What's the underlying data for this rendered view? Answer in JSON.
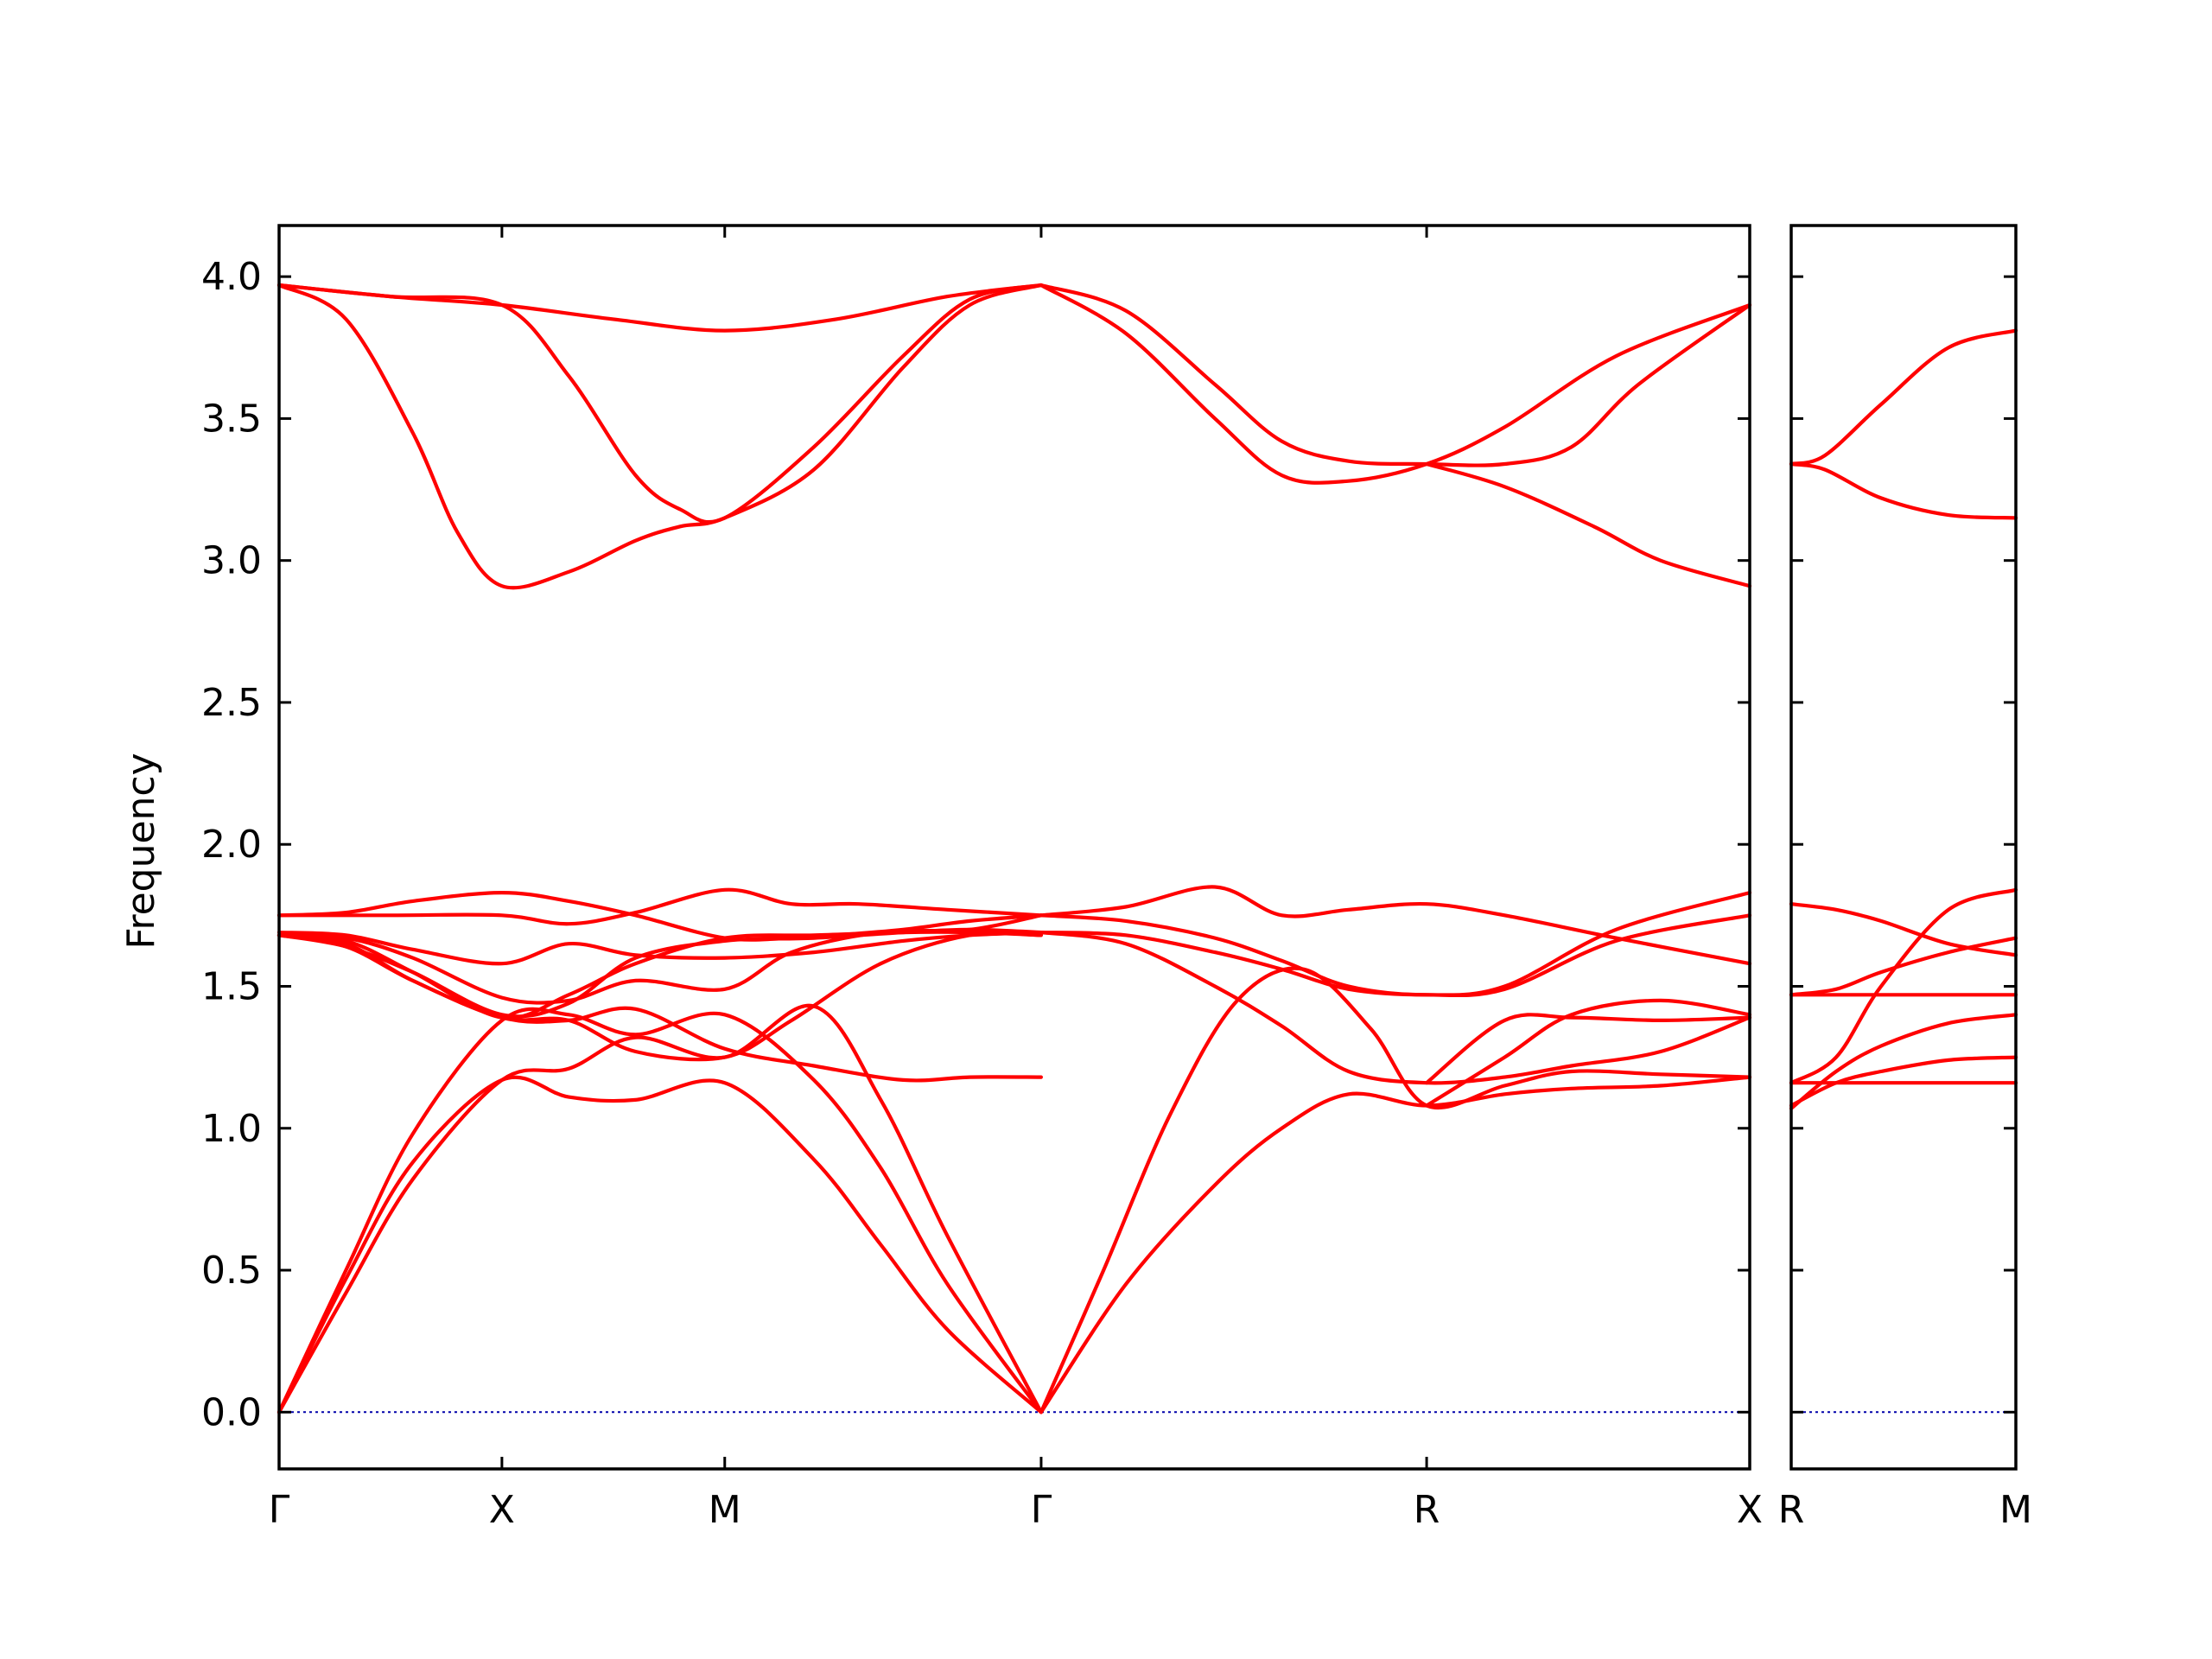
{
  "chart_data": {
    "type": "line",
    "title": "",
    "xlabel": "",
    "ylabel": "Frequency",
    "ylim": [
      -0.2,
      4.18
    ],
    "yticks": [
      "0.0",
      "0.5",
      "1.0",
      "1.5",
      "2.0",
      "2.5",
      "3.0",
      "3.5",
      "4.0"
    ],
    "ytick_values": [
      0.0,
      0.5,
      1.0,
      1.5,
      2.0,
      2.5,
      3.0,
      3.5,
      4.0
    ],
    "line_color": "#ff0000",
    "zero_line_color": "#0000aa",
    "grid": false,
    "panels": [
      {
        "xlim": [
          0,
          6.6
        ],
        "ticks": [
          {
            "pos": 0,
            "label": "Γ"
          },
          {
            "pos": 1.0,
            "label": "X"
          },
          {
            "pos": 2.0,
            "label": "M"
          },
          {
            "pos": 3.42,
            "label": "Γ"
          },
          {
            "pos": 5.15,
            "label": "R"
          },
          {
            "pos": 6.6,
            "label": "X"
          }
        ],
        "series": [
          {
            "x": [
              0,
              0.5,
              1.0,
              1.5,
              2.0,
              2.5,
              3.0,
              3.42
            ],
            "y": [
              3.97,
              3.93,
              3.9,
              3.85,
              3.81,
              3.85,
              3.93,
              3.97
            ]
          },
          {
            "x": [
              0,
              0.3,
              0.6,
              0.8,
              1.0,
              1.3,
              1.6,
              1.8,
              2.0,
              2.4,
              2.8,
              3.1,
              3.42
            ],
            "y": [
              3.97,
              3.85,
              3.45,
              3.1,
              2.91,
              2.96,
              3.07,
              3.12,
              3.15,
              3.32,
              3.68,
              3.9,
              3.97
            ]
          },
          {
            "x": [
              0,
              0.5,
              1.0,
              1.3,
              1.6,
              1.8,
              2.0,
              2.4,
              2.8,
              3.1,
              3.42
            ],
            "y": [
              3.97,
              3.93,
              3.9,
              3.65,
              3.3,
              3.18,
              3.15,
              3.4,
              3.72,
              3.92,
              3.97
            ]
          },
          {
            "x": [
              3.42,
              3.8,
              4.2,
              4.5,
              4.8,
              5.15,
              5.5,
              5.8,
              6.1,
              6.6
            ],
            "y": [
              3.97,
              3.88,
              3.62,
              3.42,
              3.35,
              3.34,
              3.34,
              3.4,
              3.62,
              3.9
            ]
          },
          {
            "x": [
              3.42,
              3.8,
              4.2,
              4.5,
              4.8,
              5.15,
              5.5,
              6.0,
              6.6
            ],
            "y": [
              3.97,
              3.8,
              3.5,
              3.3,
              3.28,
              3.34,
              3.47,
              3.72,
              3.9
            ]
          },
          {
            "x": [
              5.15,
              5.5,
              5.9,
              6.2,
              6.6
            ],
            "y": [
              3.34,
              3.26,
              3.12,
              3.0,
              2.91
            ]
          },
          {
            "x": [
              0,
              0.3,
              0.6,
              1.0,
              1.3,
              1.6,
              2.0,
              2.3,
              2.5,
              2.8,
              3.1,
              3.42
            ],
            "y": [
              1.75,
              1.76,
              1.8,
              1.83,
              1.8,
              1.75,
              1.67,
              1.67,
              1.68,
              1.7,
              1.73,
              1.75
            ]
          },
          {
            "x": [
              0,
              0.5,
              1.0,
              1.3,
              1.6,
              2.0,
              2.3,
              2.6,
              3.0,
              3.42
            ],
            "y": [
              1.75,
              1.75,
              1.75,
              1.72,
              1.76,
              1.84,
              1.79,
              1.79,
              1.77,
              1.75
            ]
          },
          {
            "x": [
              0,
              0.3,
              0.6,
              1.0,
              1.3,
              1.6,
              2.0,
              2.4,
              2.8,
              3.1,
              3.42
            ],
            "y": [
              1.69,
              1.68,
              1.63,
              1.58,
              1.65,
              1.61,
              1.6,
              1.62,
              1.66,
              1.68,
              1.69
            ]
          },
          {
            "x": [
              0,
              0.3,
              0.6,
              1.0,
              1.3,
              1.6,
              2.0,
              2.4,
              2.8,
              3.1,
              3.42
            ],
            "y": [
              1.68,
              1.66,
              1.55,
              1.39,
              1.47,
              1.58,
              1.67,
              1.68,
              1.69,
              1.69,
              1.68
            ]
          },
          {
            "x": [
              0,
              0.3,
              0.6,
              1.0,
              1.3,
              1.6,
              2.0,
              2.4,
              2.8,
              3.1,
              3.42
            ],
            "y": [
              1.68,
              1.65,
              1.52,
              1.39,
              1.38,
              1.42,
              1.28,
              1.22,
              1.17,
              1.18,
              1.18
            ]
          },
          {
            "x": [
              0,
              0.3,
              0.6,
              1.0,
              1.3,
              1.6,
              2.0,
              2.4,
              2.8,
              3.1,
              3.42
            ],
            "y": [
              1.68,
              1.64,
              1.55,
              1.4,
              1.44,
              1.6,
              1.66,
              1.67,
              1.69,
              1.7,
              1.69
            ]
          },
          {
            "x": [
              0,
              0.3,
              0.6,
              1.0,
              1.3,
              1.6,
              2.0,
              2.3,
              2.7,
              3.1,
              3.42
            ],
            "y": [
              1.68,
              1.64,
              1.52,
              1.39,
              1.38,
              1.27,
              1.25,
              1.38,
              1.58,
              1.68,
              1.68
            ]
          },
          {
            "x": [
              0,
              0.3,
              0.6,
              1.0,
              1.3,
              1.6,
              2.0,
              2.3,
              2.7,
              3.1,
              3.42
            ],
            "y": [
              1.68,
              1.67,
              1.6,
              1.46,
              1.45,
              1.52,
              1.49,
              1.62,
              1.69,
              1.7,
              1.75
            ]
          },
          {
            "x": [
              0,
              0.3,
              0.6,
              1.0,
              1.3,
              1.6,
              2.0,
              2.4,
              2.7,
              3.0,
              3.42
            ],
            "y": [
              0,
              0.47,
              0.88,
              1.17,
              1.11,
              1.1,
              1.16,
              0.89,
              0.59,
              0.29,
              0
            ]
          },
          {
            "x": [
              0,
              0.3,
              0.6,
              1.0,
              1.3,
              1.6,
              2.0,
              2.4,
              2.7,
              3.0,
              3.42
            ],
            "y": [
              0,
              0.5,
              0.98,
              1.38,
              1.4,
              1.33,
              1.4,
              1.17,
              0.86,
              0.45,
              0
            ]
          },
          {
            "x": [
              0,
              0.3,
              0.6,
              1.0,
              1.3,
              1.6,
              2.0,
              2.4,
              2.7,
              3.0,
              3.42
            ],
            "y": [
              0,
              0.42,
              0.82,
              1.17,
              1.21,
              1.32,
              1.25,
              1.43,
              1.1,
              0.62,
              0
            ]
          },
          {
            "x": [
              3.42,
              3.8,
              4.2,
              4.5,
              4.8,
              5.15,
              5.5,
              6.0,
              6.6
            ],
            "y": [
              1.75,
              1.78,
              1.85,
              1.75,
              1.77,
              1.79,
              1.75,
              1.67,
              1.58
            ]
          },
          {
            "x": [
              3.42,
              3.8,
              4.2,
              4.5,
              4.8,
              5.15,
              5.5,
              6.0,
              6.6
            ],
            "y": [
              1.75,
              1.73,
              1.67,
              1.59,
              1.5,
              1.47,
              1.5,
              1.7,
              1.83
            ]
          },
          {
            "x": [
              3.42,
              3.8,
              4.2,
              4.5,
              4.8,
              5.15,
              5.5,
              6.0,
              6.6
            ],
            "y": [
              1.69,
              1.68,
              1.62,
              1.56,
              1.49,
              1.47,
              1.49,
              1.66,
              1.75
            ]
          },
          {
            "x": [
              3.42,
              3.8,
              4.2,
              4.5,
              4.8,
              5.15,
              5.5,
              5.8,
              6.2,
              6.6
            ],
            "y": [
              1.69,
              1.65,
              1.5,
              1.36,
              1.2,
              1.16,
              1.18,
              1.22,
              1.27,
              1.39
            ]
          },
          {
            "x": [
              3.42,
              3.7,
              4.0,
              4.3,
              4.6,
              4.9,
              5.15,
              5.5,
              5.8,
              6.2,
              6.6
            ],
            "y": [
              0,
              0.5,
              1.05,
              1.45,
              1.56,
              1.35,
              1.08,
              1.15,
              1.2,
              1.19,
              1.18
            ]
          },
          {
            "x": [
              3.42,
              3.8,
              4.2,
              4.5,
              4.8,
              5.15,
              5.5,
              5.8,
              6.2,
              6.6
            ],
            "y": [
              0,
              0.45,
              0.8,
              1.0,
              1.12,
              1.08,
              1.12,
              1.14,
              1.15,
              1.18
            ]
          },
          {
            "x": [
              5.15,
              5.5,
              5.8,
              6.2,
              6.6
            ],
            "y": [
              1.16,
              1.38,
              1.39,
              1.38,
              1.39
            ]
          },
          {
            "x": [
              5.15,
              5.5,
              5.8,
              6.2,
              6.6
            ],
            "y": [
              1.08,
              1.25,
              1.4,
              1.45,
              1.4
            ]
          }
        ]
      },
      {
        "xlim": [
          0,
          1.0
        ],
        "ticks": [
          {
            "pos": 0,
            "label": "R"
          },
          {
            "pos": 1.0,
            "label": "M"
          }
        ],
        "series": [
          {
            "x": [
              0,
              0.15,
              0.4,
              0.7,
              1.0
            ],
            "y": [
              3.34,
              3.37,
              3.55,
              3.75,
              3.81
            ]
          },
          {
            "x": [
              0,
              0.15,
              0.4,
              0.7,
              1.0
            ],
            "y": [
              3.34,
              3.32,
              3.22,
              3.16,
              3.15
            ]
          },
          {
            "x": [
              0,
              0.2,
              0.4,
              0.7,
              1.0
            ],
            "y": [
              1.79,
              1.77,
              1.73,
              1.65,
              1.61
            ]
          },
          {
            "x": [
              0,
              0.2,
              0.4,
              0.7,
              1.0
            ],
            "y": [
              1.47,
              1.49,
              1.55,
              1.62,
              1.67
            ]
          },
          {
            "x": [
              0,
              1.0
            ],
            "y": [
              1.47,
              1.47
            ]
          },
          {
            "x": [
              0,
              0.2,
              0.4,
              0.7,
              1.0
            ],
            "y": [
              1.16,
              1.25,
              1.5,
              1.77,
              1.84
            ]
          },
          {
            "x": [
              0,
              0.2,
              0.4,
              0.7,
              1.0
            ],
            "y": [
              1.07,
              1.2,
              1.29,
              1.37,
              1.4
            ]
          },
          {
            "x": [
              0,
              0.2,
              0.4,
              0.7,
              1.0
            ],
            "y": [
              1.08,
              1.16,
              1.2,
              1.24,
              1.25
            ]
          },
          {
            "x": [
              0,
              1.0
            ],
            "y": [
              1.16,
              1.16
            ]
          }
        ]
      }
    ]
  }
}
